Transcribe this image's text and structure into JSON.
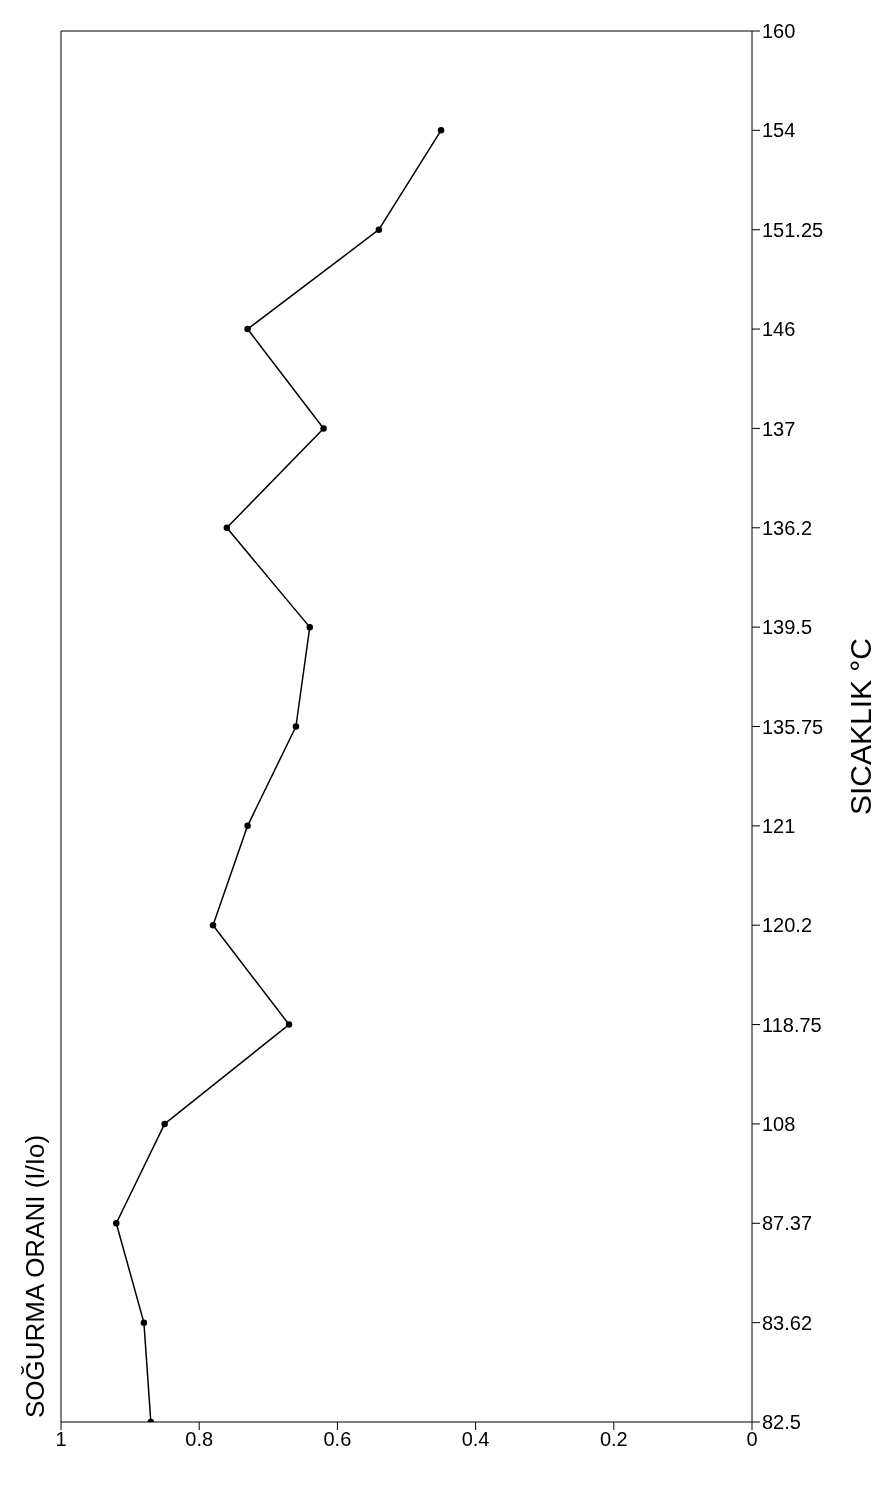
{
  "chart_data": {
    "type": "line",
    "orientation": "horizontal",
    "title": "SOĞURMA ORANI (I/Io)",
    "ylabel": "SICAKLIK °C",
    "categories": [
      "160",
      "154",
      "151.25",
      "146",
      "137",
      "136.2",
      "139.5",
      "135.75",
      "121",
      "120.2",
      "118.75",
      "108",
      "87.37",
      "83.62",
      "82.5"
    ],
    "series": [
      {
        "color": "#000000",
        "values": [
          null,
          0.45,
          0.54,
          0.73,
          0.62,
          0.76,
          0.64,
          0.66,
          0.73,
          0.78,
          0.67,
          0.85,
          0.92,
          0.88,
          0.87
        ]
      }
    ],
    "xlim": [
      1,
      0
    ],
    "xticks": [
      1,
      0.8,
      0.6,
      0.4,
      0.2,
      0
    ],
    "grid": false,
    "legend": false,
    "marker": "circle",
    "line_style": "solid"
  }
}
